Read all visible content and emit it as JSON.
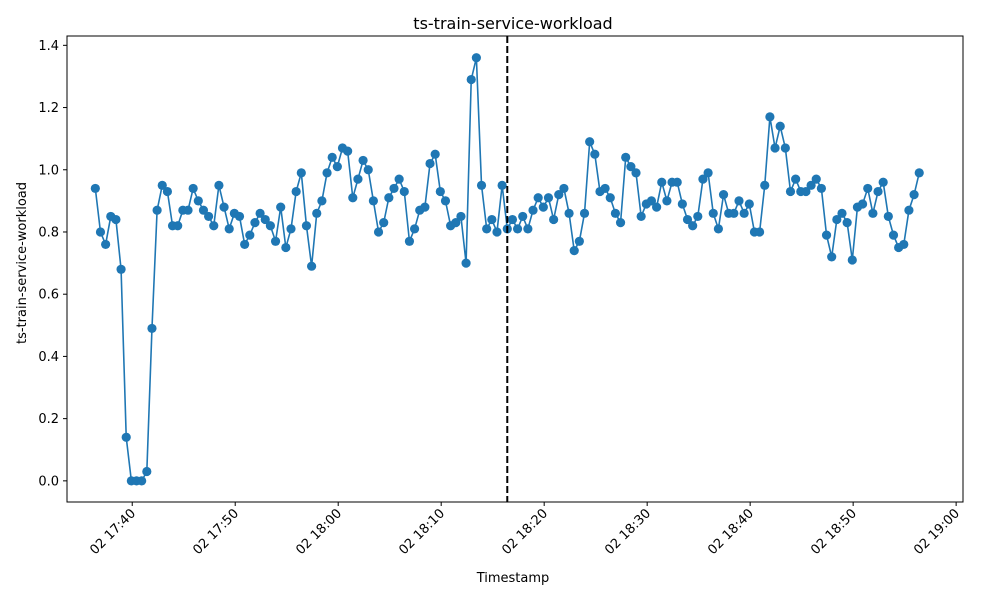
{
  "chart_data": {
    "type": "line",
    "title": "ts-train-service-workload",
    "xlabel": "Timestamp",
    "ylabel": "ts-train-service-workload",
    "x_start": "02 17:36:25",
    "x_step_seconds": 30,
    "xlim": [
      "02 17:33:40",
      "02 19:00:40"
    ],
    "ylim": [
      -0.068,
      1.43
    ],
    "x_ticks": [
      "02 17:40",
      "02 17:50",
      "02 18:00",
      "02 18:10",
      "02 18:20",
      "02 18:30",
      "02 18:40",
      "02 18:50",
      "02 19:00"
    ],
    "y_ticks": [
      "0.0",
      "0.2",
      "0.4",
      "0.6",
      "0.8",
      "1.0",
      "1.2",
      "1.4"
    ],
    "grid": false,
    "legend": "none",
    "marker": "circle",
    "series": [
      {
        "color": "#1f77b4",
        "values": [
          0.94,
          0.8,
          0.76,
          0.85,
          0.84,
          0.68,
          0.14,
          0.0,
          0.0,
          0.0,
          0.03,
          0.49,
          0.87,
          0.95,
          0.93,
          0.82,
          0.82,
          0.87,
          0.87,
          0.94,
          0.9,
          0.87,
          0.85,
          0.82,
          0.95,
          0.88,
          0.81,
          0.86,
          0.85,
          0.76,
          0.79,
          0.83,
          0.86,
          0.84,
          0.82,
          0.77,
          0.88,
          0.75,
          0.81,
          0.93,
          0.99,
          0.82,
          0.69,
          0.86,
          0.9,
          0.99,
          1.04,
          1.01,
          1.07,
          1.06,
          0.91,
          0.97,
          1.03,
          1.0,
          0.9,
          0.8,
          0.83,
          0.91,
          0.94,
          0.97,
          0.93,
          0.77,
          0.81,
          0.87,
          0.88,
          1.02,
          1.05,
          0.93,
          0.9,
          0.82,
          0.83,
          0.85,
          0.7,
          1.29,
          1.36,
          0.95,
          0.81,
          0.84,
          0.8,
          0.95,
          0.81,
          0.84,
          0.81,
          0.85,
          0.81,
          0.87,
          0.91,
          0.88,
          0.91,
          0.84,
          0.92,
          0.94,
          0.86,
          0.74,
          0.77,
          0.86,
          1.09,
          1.05,
          0.93,
          0.94,
          0.91,
          0.86,
          0.83,
          1.04,
          1.01,
          0.99,
          0.85,
          0.89,
          0.9,
          0.88,
          0.96,
          0.9,
          0.96,
          0.96,
          0.89,
          0.84,
          0.82,
          0.85,
          0.97,
          0.99,
          0.86,
          0.81,
          0.92,
          0.86,
          0.86,
          0.9,
          0.86,
          0.89,
          0.8,
          0.8,
          0.95,
          1.17,
          1.07,
          1.14,
          1.07,
          0.93,
          0.97,
          0.93,
          0.93,
          0.95,
          0.97,
          0.94,
          0.79,
          0.72,
          0.84,
          0.86,
          0.83,
          0.71,
          0.88,
          0.89,
          0.94,
          0.86,
          0.93,
          0.96,
          0.85,
          0.79,
          0.75,
          0.76,
          0.87,
          0.92,
          0.99
        ]
      }
    ],
    "vline": {
      "x": "02 18:16:25",
      "style": "dashed",
      "color": "#000000"
    }
  }
}
